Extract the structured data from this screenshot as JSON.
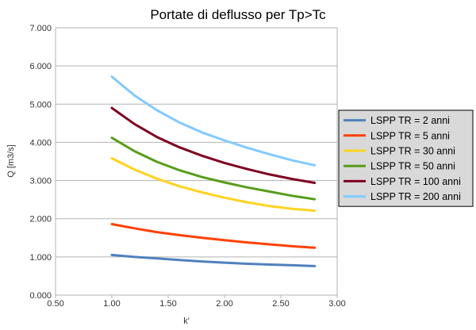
{
  "chart_data": {
    "type": "line",
    "title": "Portate di deflusso per Tp>Tc",
    "xlabel": "k'",
    "ylabel": "Q [m3/s]",
    "xlim": [
      0.5,
      3.0
    ],
    "ylim": [
      0.0,
      7.0
    ],
    "x_ticks": [
      "0.50",
      "1.00",
      "1.50",
      "2.00",
      "2.50",
      "3.00"
    ],
    "y_ticks": [
      "0.000",
      "1.000",
      "2.000",
      "3.000",
      "4.000",
      "5.000",
      "6.000",
      "7.000"
    ],
    "grid": "horizontal",
    "legend_position": "right",
    "x": [
      1.0,
      1.2,
      1.4,
      1.6,
      1.8,
      2.0,
      2.2,
      2.4,
      2.6,
      2.8
    ],
    "series": [
      {
        "name": "LSPP TR = 2 anni",
        "color": "#4f81bd",
        "values": [
          1.05,
          1.0,
          0.96,
          0.92,
          0.88,
          0.85,
          0.82,
          0.8,
          0.78,
          0.76
        ]
      },
      {
        "name": "LSPP TR = 5 anni",
        "color": "#ff4000",
        "values": [
          1.86,
          1.75,
          1.65,
          1.57,
          1.5,
          1.44,
          1.38,
          1.33,
          1.28,
          1.24
        ]
      },
      {
        "name": "LSPP TR = 30 anni",
        "color": "#ffd320",
        "values": [
          3.58,
          3.29,
          3.05,
          2.85,
          2.69,
          2.55,
          2.43,
          2.33,
          2.26,
          2.21
        ]
      },
      {
        "name": "LSPP TR = 50 anni",
        "color": "#579d1c",
        "values": [
          4.12,
          3.77,
          3.49,
          3.27,
          3.09,
          2.95,
          2.82,
          2.71,
          2.6,
          2.51
        ]
      },
      {
        "name": "LSPP TR = 100 anni",
        "color": "#7e0021",
        "values": [
          4.9,
          4.48,
          4.14,
          3.87,
          3.65,
          3.46,
          3.3,
          3.16,
          3.04,
          2.94
        ]
      },
      {
        "name": "LSPP TR = 200 anni",
        "color": "#83caff",
        "values": [
          5.72,
          5.23,
          4.84,
          4.52,
          4.26,
          4.05,
          3.86,
          3.69,
          3.53,
          3.4
        ]
      }
    ]
  }
}
